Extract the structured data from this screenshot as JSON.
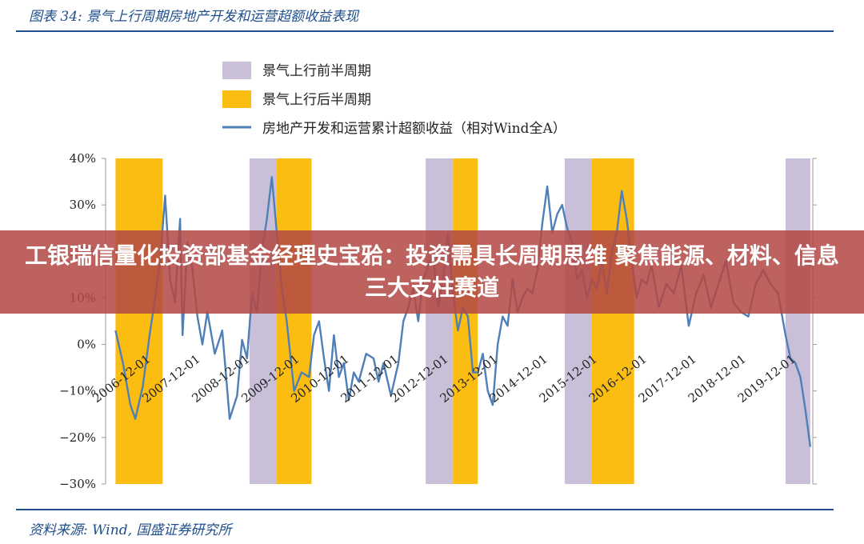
{
  "figure_title": "图表 34:  景气上行周期房地产开发和运营超额收益表现",
  "source_note": "资料来源:  Wind, 国盛证券研究所",
  "headline": "工银瑞信量化投资部基金经理史宝𬌗：投资需具长周期思维 聚焦能源、材料、信息三大支柱赛道",
  "colors": {
    "first_half": "#c9bfd8",
    "second_half": "#fbbd12",
    "line": "#4f7fb8",
    "axis": "#9a9a9a",
    "rule": "#1f4e8c"
  },
  "chart_data": {
    "type": "line",
    "title": "",
    "xlabel": "",
    "ylabel": "",
    "ylim": [
      -30,
      40
    ],
    "y_ticks": [
      40,
      30,
      20,
      10,
      0,
      -10,
      -20,
      -30
    ],
    "y_tick_labels": [
      "40%",
      "30%",
      "20%",
      "10%",
      "0%",
      "−10%",
      "−20%",
      "−30%"
    ],
    "x_range": [
      2006.0,
      2020.25
    ],
    "x_tick_labels": [
      "2006-12-01",
      "2007-12-01",
      "2008-12-01",
      "2009-12-01",
      "2010-12-01",
      "2011-12-01",
      "2012-12-01",
      "2013-12-01",
      "2014-12-01",
      "2015-12-01",
      "2016-12-01",
      "2017-12-01",
      "2018-12-01",
      "2019-12-01"
    ],
    "x_tick_values": [
      2006.92,
      2007.92,
      2008.92,
      2009.92,
      2010.92,
      2011.92,
      2012.92,
      2013.92,
      2014.92,
      2015.92,
      2016.92,
      2017.92,
      2018.92,
      2019.92
    ],
    "legend": {
      "placement": "top-left",
      "entries": [
        "景气上行前半周期",
        "景气上行后半周期",
        "房地产开发和运营累计超额收益（相对Wind全A）"
      ]
    },
    "bands": [
      {
        "series": "景气上行后半周期",
        "start": 2006.2,
        "end": 2007.15
      },
      {
        "series": "景气上行前半周期",
        "start": 2008.9,
        "end": 2009.45
      },
      {
        "series": "景气上行后半周期",
        "start": 2009.45,
        "end": 2010.15
      },
      {
        "series": "景气上行前半周期",
        "start": 2012.45,
        "end": 2013.0
      },
      {
        "series": "景气上行后半周期",
        "start": 2013.0,
        "end": 2013.5
      },
      {
        "series": "景气上行前半周期",
        "start": 2015.25,
        "end": 2015.8
      },
      {
        "series": "景气上行后半周期",
        "start": 2015.8,
        "end": 2016.65
      },
      {
        "series": "景气上行前半周期",
        "start": 2019.7,
        "end": 2020.2
      }
    ],
    "series": [
      {
        "name": "房地产开发和运营累计超额收益（相对Wind全A）",
        "x": [
          2006.2,
          2006.35,
          2006.5,
          2006.6,
          2006.75,
          2006.9,
          2007.0,
          2007.1,
          2007.2,
          2007.3,
          2007.4,
          2007.5,
          2007.55,
          2007.65,
          2007.75,
          2007.85,
          2007.95,
          2008.05,
          2008.2,
          2008.35,
          2008.5,
          2008.65,
          2008.75,
          2008.85,
          2008.95,
          2009.05,
          2009.15,
          2009.25,
          2009.35,
          2009.45,
          2009.55,
          2009.65,
          2009.8,
          2009.95,
          2010.1,
          2010.2,
          2010.3,
          2010.4,
          2010.5,
          2010.6,
          2010.7,
          2010.8,
          2010.9,
          2011.0,
          2011.1,
          2011.25,
          2011.4,
          2011.5,
          2011.6,
          2011.75,
          2011.9,
          2012.0,
          2012.1,
          2012.2,
          2012.3,
          2012.4,
          2012.5,
          2012.6,
          2012.7,
          2012.8,
          2012.9,
          2013.0,
          2013.1,
          2013.2,
          2013.3,
          2013.4,
          2013.5,
          2013.6,
          2013.7,
          2013.8,
          2013.9,
          2014.0,
          2014.1,
          2014.2,
          2014.3,
          2014.4,
          2014.5,
          2014.6,
          2014.7,
          2014.8,
          2014.9,
          2015.0,
          2015.1,
          2015.2,
          2015.3,
          2015.4,
          2015.5,
          2015.6,
          2015.7,
          2015.8,
          2015.9,
          2016.0,
          2016.1,
          2016.2,
          2016.3,
          2016.4,
          2016.5,
          2016.6,
          2016.7,
          2016.8,
          2016.9,
          2017.0,
          2017.15,
          2017.3,
          2017.45,
          2017.6,
          2017.75,
          2017.9,
          2018.05,
          2018.2,
          2018.35,
          2018.5,
          2018.65,
          2018.8,
          2018.95,
          2019.1,
          2019.25,
          2019.4,
          2019.55,
          2019.7,
          2019.8,
          2019.9,
          2020.0,
          2020.1,
          2020.2
        ],
        "values": [
          3,
          -4,
          -13,
          -16,
          -9,
          3,
          10,
          18,
          32,
          14,
          9,
          27,
          2,
          22,
          16,
          6,
          0,
          7,
          -2,
          3,
          -16,
          -11,
          1,
          -3,
          11,
          7,
          20,
          27,
          36,
          24,
          12,
          5,
          -10,
          -6,
          -7,
          2,
          5,
          -3,
          -10,
          2,
          -7,
          -4,
          -12,
          -6,
          -8,
          -2,
          -3,
          -8,
          -4,
          -11,
          -4,
          5,
          8,
          12,
          5,
          14,
          17,
          19,
          8,
          14,
          24,
          11,
          3,
          8,
          6,
          -6,
          -6,
          -2,
          -10,
          -13,
          0,
          6,
          4,
          14,
          7,
          10,
          12,
          11,
          16,
          26,
          34,
          24,
          28,
          30,
          25,
          22,
          14,
          16,
          10,
          14,
          12,
          18,
          11,
          20,
          24,
          33,
          27,
          18,
          10,
          14,
          13,
          17,
          8,
          13,
          11,
          17,
          4,
          11,
          15,
          8,
          13,
          18,
          9,
          7,
          6,
          13,
          16,
          13,
          11,
          2,
          -3,
          -4,
          -7,
          -14,
          -22
        ]
      }
    ]
  }
}
